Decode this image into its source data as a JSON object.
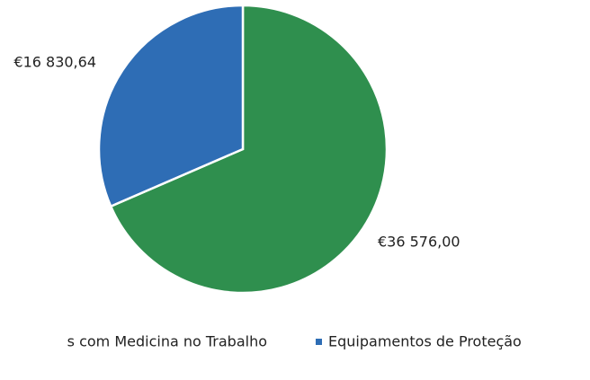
{
  "chart_data": {
    "type": "pie",
    "categories": [
      "s com Medicina no Trabalho",
      "Equipamentos de Proteção"
    ],
    "values": [
      36576.0,
      16830.64
    ],
    "value_labels": [
      "€36 576,00",
      "€16 830,64"
    ],
    "colors": [
      "#2f8f4e",
      "#2e6db5"
    ]
  }
}
